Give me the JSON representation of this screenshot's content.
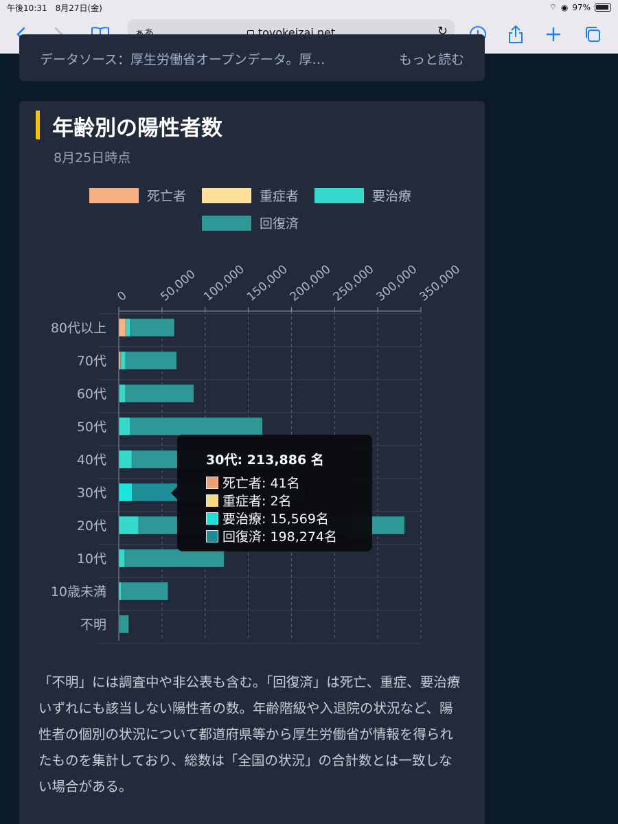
{
  "status_bar": {
    "time": "午後10:31　8月27日(金)",
    "battery": "97%"
  },
  "browser": {
    "text_size_label": "ぁあ",
    "url": "toyokeizai.net"
  },
  "top_panel": {
    "source_text": "データソース：厚生労働省オープンデータ。厚…",
    "more_link": "もっと読む"
  },
  "card": {
    "title": "年齢別の陽性者数",
    "subtitle": "8月25日時点",
    "description": "「不明」には調査中や非公表も含む。「回復済」は死亡、重症、要治療いずれにも該当しない陽性者の数。年齢階級や入退院の状況など、陽性者の個別の状況について都道府県等から厚生労働省が情報を得られたものを集計しており、総数は「全国の状況」の合計数とは一致しない場合がある。"
  },
  "legend": [
    {
      "label": "死亡者",
      "color": "#f7b183"
    },
    {
      "label": "重症者",
      "color": "#ffe19a"
    },
    {
      "label": "要治療",
      "color": "#36d9cc"
    },
    {
      "label": "回復済",
      "color": "#2e9896"
    }
  ],
  "tooltip": {
    "title": "30代: 213,886 名",
    "rows": [
      {
        "label": "死亡者: 41名",
        "color": "#f4a26a"
      },
      {
        "label": "重症者: 2名",
        "color": "#ffe07a"
      },
      {
        "label": "要治療: 15,569名",
        "color": "#19e6dc"
      },
      {
        "label": "回復済: 198,274名",
        "color": "#1d8f98"
      }
    ]
  },
  "chart_data": {
    "type": "bar",
    "orientation": "horizontal",
    "stacked": true,
    "categories": [
      "80代以上",
      "70代",
      "60代",
      "50代",
      "40代",
      "30代",
      "20代",
      "10代",
      "10歳未満",
      "不明"
    ],
    "x_ticks": [
      "0",
      "50,000",
      "100,000",
      "150,000",
      "200,000",
      "250,000",
      "300,000",
      "350,000"
    ],
    "xlim": [
      0,
      350000
    ],
    "grid": true,
    "legend_position": "top",
    "highlighted_category": "30代",
    "series": [
      {
        "name": "死亡者",
        "color": "#f7b183",
        "values": [
          8000,
          2200,
          700,
          300,
          100,
          41,
          20,
          0,
          0,
          0
        ]
      },
      {
        "name": "重症者",
        "color": "#ffe19a",
        "values": [
          300,
          200,
          150,
          100,
          30,
          2,
          5,
          0,
          0,
          0
        ]
      },
      {
        "name": "要治療",
        "color": "#36d9cc",
        "values": [
          5000,
          5500,
          7000,
          13000,
          15000,
          15569,
          23000,
          7000,
          3000,
          500
        ]
      },
      {
        "name": "回復済",
        "color": "#2e9896",
        "values": [
          51000,
          59000,
          79000,
          153000,
          190000,
          198274,
          308000,
          115000,
          54000,
          11000
        ]
      }
    ]
  }
}
